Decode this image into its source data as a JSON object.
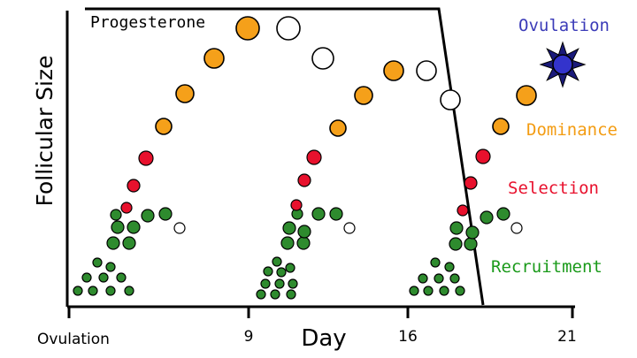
{
  "axes": {
    "y_label": "Follicular Size",
    "x_label": "Day",
    "x_ticks": [
      {
        "day": 0,
        "label": "Ovulation"
      },
      {
        "day": 9,
        "label": "9"
      },
      {
        "day": 16,
        "label": "16"
      },
      {
        "day": 21,
        "label": "21"
      }
    ]
  },
  "hormone": {
    "label": "Progesterone"
  },
  "stages": [
    {
      "key": "ovulation",
      "label": "Ovulation",
      "color": "#3b3bb8"
    },
    {
      "key": "dominance",
      "label": "Dominance",
      "color": "#f39c12"
    },
    {
      "key": "selection",
      "label": "Selection",
      "color": "#e8112d"
    },
    {
      "key": "recruitment",
      "label": "Recruitment",
      "color": "#1a9a1a"
    }
  ],
  "colors": {
    "recruited": "#2e8b2e",
    "selected": "#e8112d",
    "dominant": "#f5a01a",
    "atretic": "#ffffff",
    "ovulatory": "#3333cc",
    "ovulatory_rays": "#1a1a7a",
    "outline": "#000000"
  },
  "waves": [
    {
      "name": "wave-1"
    },
    {
      "name": "wave-2"
    },
    {
      "name": "wave-3"
    }
  ]
}
